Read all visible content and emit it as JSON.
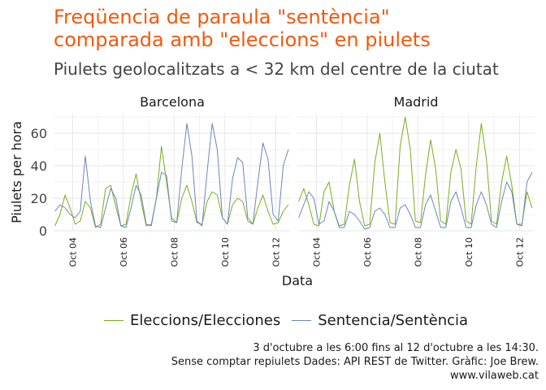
{
  "title_line1": "Freqüencia de paraula \"sentència\"",
  "title_line2": "comparada amb \"eleccions\" en piulets",
  "subtitle": "Piulets geolocalitzats a < 32 km del centre de la ciutat",
  "caption": {
    "line1": "3 d'octubre a les 6:00 fins al 12 d'octubre a les 14:30.",
    "line2": "Sense comptar repiulets Dades: API REST de Twitter. Gràfic: Joe Brew.",
    "line3": "www.vilaweb.cat"
  },
  "colors": {
    "elecciones": "#7aad1e",
    "sentencia": "#6a86bb",
    "title": "#f05a0e",
    "grid": "#e6e6e6"
  },
  "chart_data": {
    "type": "line",
    "xlabel": "Data",
    "ylabel": "Piulets per hora",
    "ylim": [
      0,
      72
    ],
    "y_ticks": [
      0,
      20,
      40,
      60
    ],
    "x_ticks": [
      "Oct 04",
      "Oct 06",
      "Oct 08",
      "Oct 10",
      "Oct 12"
    ],
    "x_range_days": [
      3.25,
      12.6
    ],
    "grid": true,
    "legend_position": "bottom",
    "legend": [
      "Eleccions/Elecciones",
      "Sentencia/Sentència"
    ],
    "panels": [
      {
        "name": "Barcelona",
        "series": [
          {
            "name": "Eleccions/Elecciones",
            "x": [
              3.3,
              3.5,
              3.7,
              3.9,
              4.1,
              4.3,
              4.5,
              4.7,
              4.9,
              5.1,
              5.3,
              5.5,
              5.7,
              5.9,
              6.1,
              6.3,
              6.5,
              6.7,
              6.9,
              7.1,
              7.3,
              7.5,
              7.7,
              7.9,
              8.1,
              8.3,
              8.5,
              8.7,
              8.9,
              9.1,
              9.3,
              9.5,
              9.7,
              9.9,
              10.1,
              10.3,
              10.5,
              10.7,
              10.9,
              11.1,
              11.3,
              11.5,
              11.7,
              11.9,
              12.1,
              12.3,
              12.5
            ],
            "values": [
              3,
              10,
              22,
              14,
              4,
              6,
              18,
              14,
              2,
              4,
              26,
              28,
              15,
              3,
              4,
              22,
              35,
              18,
              3,
              4,
              20,
              52,
              30,
              8,
              5,
              20,
              28,
              18,
              5,
              4,
              18,
              24,
              22,
              8,
              4,
              16,
              20,
              18,
              6,
              4,
              14,
              22,
              12,
              4,
              5,
              12,
              16
            ]
          },
          {
            "name": "Sentencia/Sentència",
            "x": [
              3.3,
              3.5,
              3.7,
              3.9,
              4.1,
              4.3,
              4.5,
              4.7,
              4.9,
              5.1,
              5.3,
              5.5,
              5.7,
              5.9,
              6.1,
              6.3,
              6.5,
              6.7,
              6.9,
              7.1,
              7.3,
              7.5,
              7.7,
              7.9,
              8.1,
              8.3,
              8.5,
              8.7,
              8.9,
              9.1,
              9.3,
              9.5,
              9.7,
              9.9,
              10.1,
              10.3,
              10.5,
              10.7,
              10.9,
              11.1,
              11.3,
              11.5,
              11.7,
              11.9,
              12.1,
              12.3,
              12.5
            ],
            "values": [
              12,
              16,
              14,
              10,
              8,
              12,
              46,
              18,
              3,
              2,
              14,
              26,
              20,
              3,
              2,
              14,
              28,
              22,
              4,
              3,
              20,
              36,
              34,
              6,
              5,
              38,
              66,
              46,
              6,
              3,
              36,
              66,
              50,
              8,
              4,
              32,
              45,
              42,
              8,
              4,
              30,
              54,
              44,
              10,
              6,
              40,
              50
            ]
          }
        ]
      },
      {
        "name": "Madrid",
        "series": [
          {
            "name": "Eleccions/Elecciones",
            "x": [
              3.3,
              3.5,
              3.7,
              3.9,
              4.1,
              4.3,
              4.5,
              4.7,
              4.9,
              5.1,
              5.3,
              5.5,
              5.7,
              5.9,
              6.1,
              6.3,
              6.5,
              6.7,
              6.9,
              7.1,
              7.3,
              7.5,
              7.7,
              7.9,
              8.1,
              8.3,
              8.5,
              8.7,
              8.9,
              9.1,
              9.3,
              9.5,
              9.7,
              9.9,
              10.1,
              10.3,
              10.5,
              10.7,
              10.9,
              11.1,
              11.3,
              11.5,
              11.7,
              11.9,
              12.1,
              12.3,
              12.5
            ],
            "values": [
              18,
              26,
              16,
              4,
              3,
              24,
              30,
              12,
              3,
              4,
              28,
              44,
              18,
              3,
              4,
              42,
              60,
              30,
              5,
              4,
              52,
              70,
              50,
              6,
              5,
              34,
              56,
              38,
              6,
              4,
              36,
              50,
              38,
              6,
              4,
              40,
              66,
              44,
              6,
              4,
              30,
              46,
              28,
              4,
              4,
              24,
              14
            ]
          },
          {
            "name": "Sentencia/Sentència",
            "x": [
              3.3,
              3.5,
              3.7,
              3.9,
              4.1,
              4.3,
              4.5,
              4.7,
              4.9,
              5.1,
              5.3,
              5.5,
              5.7,
              5.9,
              6.1,
              6.3,
              6.5,
              6.7,
              6.9,
              7.1,
              7.3,
              7.5,
              7.7,
              7.9,
              8.1,
              8.3,
              8.5,
              8.7,
              8.9,
              9.1,
              9.3,
              9.5,
              9.7,
              9.9,
              10.1,
              10.3,
              10.5,
              10.7,
              10.9,
              11.1,
              11.3,
              11.5,
              11.7,
              11.9,
              12.1,
              12.3,
              12.5
            ],
            "values": [
              8,
              16,
              24,
              20,
              4,
              6,
              18,
              12,
              2,
              2,
              12,
              10,
              6,
              1,
              2,
              12,
              14,
              10,
              2,
              2,
              14,
              16,
              10,
              2,
              2,
              16,
              22,
              12,
              2,
              2,
              18,
              24,
              14,
              2,
              2,
              16,
              24,
              16,
              4,
              2,
              18,
              30,
              24,
              4,
              3,
              30,
              36
            ]
          }
        ]
      }
    ]
  }
}
